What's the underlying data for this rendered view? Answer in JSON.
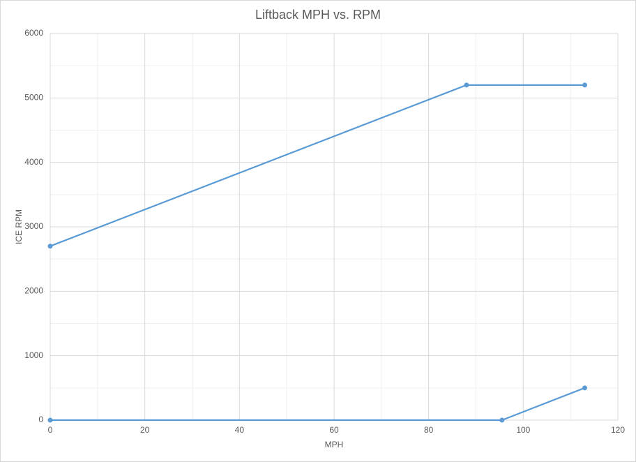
{
  "chart_data": {
    "type": "line",
    "title": "Liftback MPH vs. RPM",
    "x_label": "MPH",
    "y_label": "ICE RPM",
    "series": [
      {
        "color": "#5b9bd5",
        "x": [
          0,
          88,
          113
        ],
        "values": [
          2700,
          5200,
          5200
        ]
      },
      {
        "color": "#5b9bd5",
        "x": [
          0,
          95.5,
          113
        ],
        "values": [
          0,
          0,
          500
        ]
      }
    ],
    "xlim": [
      0,
      120
    ],
    "xticks": [
      0,
      20,
      40,
      60,
      80,
      100,
      120
    ],
    "ylim": [
      0,
      6000
    ],
    "yticks": [
      0,
      1000,
      2000,
      3000,
      4000,
      5000,
      6000
    ],
    "grid": true,
    "markers": true
  }
}
